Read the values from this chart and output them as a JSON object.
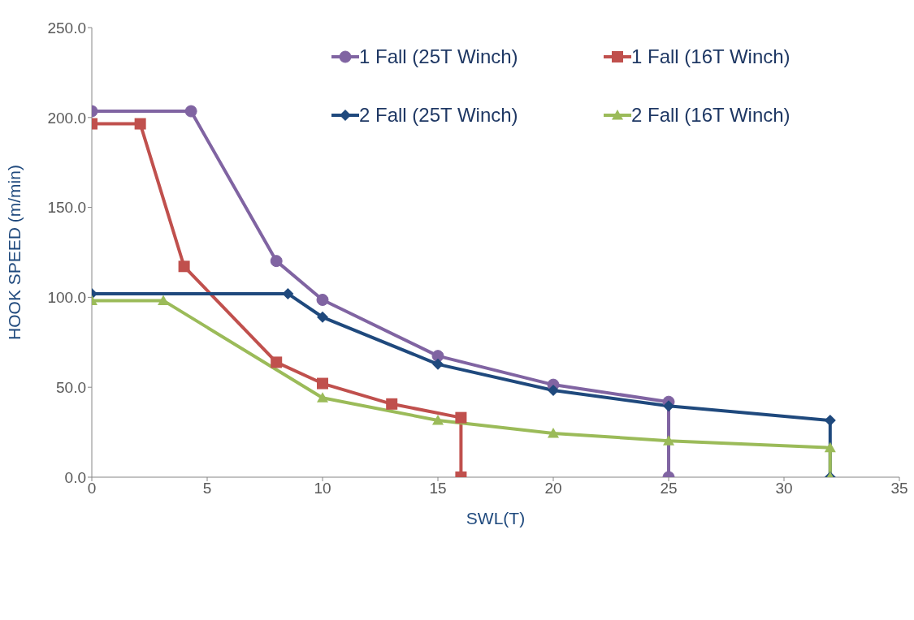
{
  "chart_data": {
    "type": "line",
    "xlabel": "SWL(T)",
    "ylabel": "HOOK SPEED (m/min)",
    "xlim": [
      0,
      35
    ],
    "xticks": [
      0,
      5,
      10,
      15,
      20,
      25,
      30,
      35
    ],
    "ylim": [
      0,
      250
    ],
    "yticks": [
      {
        "value": 0,
        "label": "0.0"
      },
      {
        "value": 50,
        "label": "50.0"
      },
      {
        "value": 100,
        "label": "100.0"
      },
      {
        "value": 150,
        "label": "150.0"
      },
      {
        "value": 200,
        "label": "200.0"
      },
      {
        "value": 250,
        "label": "250.0"
      }
    ],
    "grid": false,
    "legend": "top right",
    "line_style": "solid",
    "series": [
      {
        "name": "1 Fall (25T Winch)",
        "color": "#8064a2",
        "marker": "circle",
        "x": [
          0,
          4.3,
          8,
          10,
          15,
          20,
          25,
          25
        ],
        "values": [
          203.5,
          203.5,
          120.2,
          98.6,
          67.4,
          51.4,
          41.9,
          0
        ]
      },
      {
        "name": "1 Fall (16T Winch)",
        "color": "#c0504d",
        "marker": "square",
        "x": [
          0,
          2.1,
          4,
          8,
          10,
          13,
          16,
          16
        ],
        "values": [
          196.5,
          196.5,
          117.2,
          63.9,
          52.1,
          40.7,
          33.1,
          0
        ]
      },
      {
        "name": "2 Fall (25T Winch)",
        "color": "#1f497d",
        "marker": "diamond",
        "x": [
          0,
          8.5,
          10,
          15,
          20,
          25,
          32,
          32
        ],
        "values": [
          102,
          102,
          89,
          62.8,
          48.3,
          39.6,
          31.6,
          0
        ]
      },
      {
        "name": "2 Fall (16T Winch)",
        "color": "#9bbb59",
        "marker": "triangle",
        "x": [
          0,
          3.1,
          10,
          15,
          20,
          25,
          32,
          32
        ],
        "values": [
          98.2,
          98.2,
          44.1,
          31.6,
          24.4,
          20.2,
          16.4,
          0
        ]
      }
    ]
  }
}
